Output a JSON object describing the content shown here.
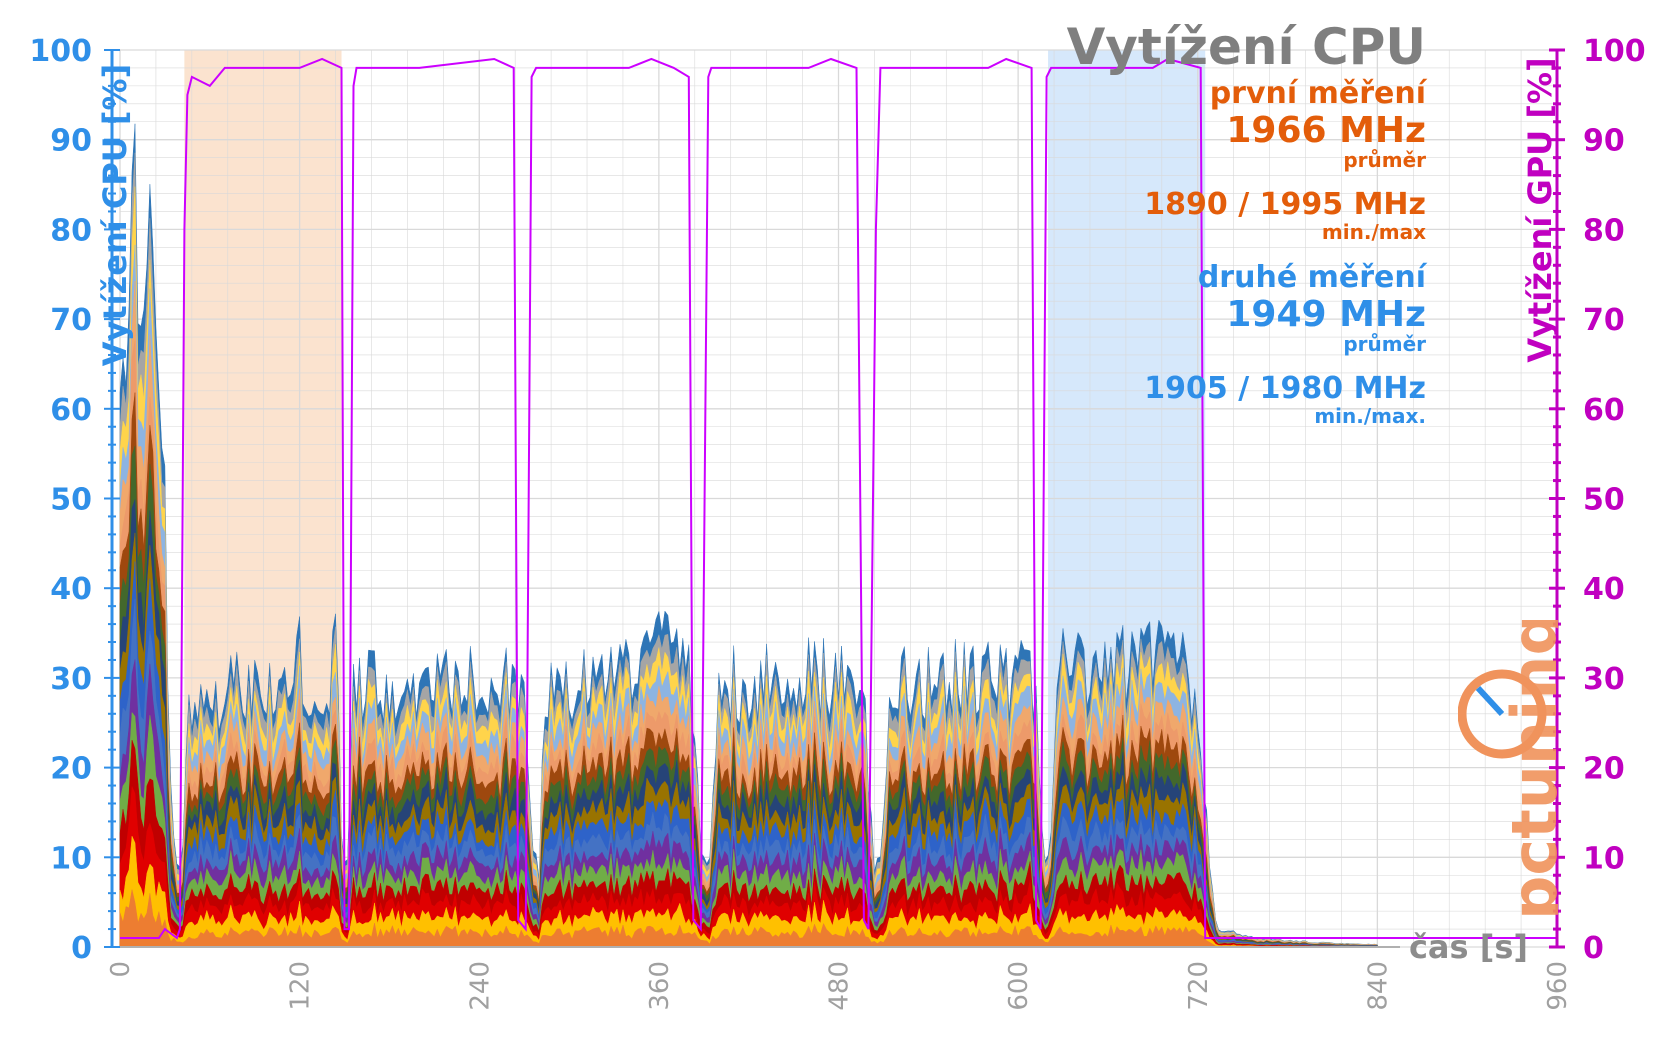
{
  "chart_data": {
    "type": "area",
    "title": "Vytížení CPU",
    "xlabel": "čas [s]",
    "ylabel_left": "Vytížení CPU [%]",
    "ylabel_right": "Vytížení GPU [%]",
    "xlim": [
      0,
      960
    ],
    "ylim": [
      0,
      100
    ],
    "x_ticks": [
      0,
      120,
      240,
      360,
      480,
      600,
      720,
      840,
      960
    ],
    "y_ticks": [
      0,
      10,
      20,
      30,
      40,
      50,
      60,
      70,
      80,
      90,
      100
    ],
    "grid": true,
    "highlight_ranges": [
      {
        "from": 43,
        "to": 148,
        "color": "#fbe3cf"
      },
      {
        "from": 620,
        "to": 725,
        "color": "#d6e8fb"
      }
    ],
    "cpu_stack_colors": [
      "#ed7d31",
      "#ffc000",
      "#e00000",
      "#c00000",
      "#70ad47",
      "#7030a0",
      "#4472c4",
      "#2e63c9",
      "#997300",
      "#264478",
      "#43682b",
      "#9e480e",
      "#ed9a6a",
      "#f0a86c",
      "#8db4e2",
      "#ffd44b",
      "#a5a5a5",
      "#2e75b6"
    ],
    "cpu_total_profile": [
      [
        0,
        62
      ],
      [
        4,
        70
      ],
      [
        10,
        80
      ],
      [
        18,
        78
      ],
      [
        25,
        72
      ],
      [
        30,
        50
      ],
      [
        33,
        25
      ],
      [
        36,
        12
      ],
      [
        40,
        8
      ],
      [
        43,
        12
      ],
      [
        45,
        27
      ],
      [
        60,
        28
      ],
      [
        80,
        29
      ],
      [
        100,
        28
      ],
      [
        118,
        33
      ],
      [
        125,
        30
      ],
      [
        140,
        29
      ],
      [
        145,
        42
      ],
      [
        148,
        12
      ],
      [
        152,
        9
      ],
      [
        155,
        29
      ],
      [
        200,
        30
      ],
      [
        260,
        30
      ],
      [
        270,
        28
      ],
      [
        276,
        10
      ],
      [
        280,
        9
      ],
      [
        284,
        29
      ],
      [
        320,
        30
      ],
      [
        350,
        33
      ],
      [
        355,
        40
      ],
      [
        365,
        34
      ],
      [
        380,
        30
      ],
      [
        389,
        10
      ],
      [
        394,
        9
      ],
      [
        400,
        29
      ],
      [
        440,
        30
      ],
      [
        480,
        30
      ],
      [
        497,
        30
      ],
      [
        503,
        10
      ],
      [
        508,
        9
      ],
      [
        514,
        29
      ],
      [
        560,
        30
      ],
      [
        600,
        30
      ],
      [
        612,
        29
      ],
      [
        617,
        10
      ],
      [
        621,
        9
      ],
      [
        627,
        31
      ],
      [
        680,
        32
      ],
      [
        705,
        33
      ],
      [
        715,
        30
      ],
      [
        722,
        25
      ],
      [
        728,
        8
      ],
      [
        733,
        2
      ],
      [
        760,
        1
      ],
      [
        800,
        0.5
      ],
      [
        840,
        0.3
      ]
    ],
    "gpu_profile": [
      [
        0,
        1
      ],
      [
        26,
        1
      ],
      [
        30,
        2
      ],
      [
        38,
        1
      ],
      [
        40,
        2
      ],
      [
        43,
        80
      ],
      [
        45,
        95
      ],
      [
        48,
        97
      ],
      [
        60,
        96
      ],
      [
        70,
        98
      ],
      [
        120,
        98
      ],
      [
        135,
        99
      ],
      [
        148,
        98
      ],
      [
        150,
        2
      ],
      [
        153,
        2
      ],
      [
        156,
        96
      ],
      [
        158,
        98
      ],
      [
        200,
        98
      ],
      [
        250,
        99
      ],
      [
        263,
        98
      ],
      [
        266,
        3
      ],
      [
        271,
        2
      ],
      [
        275,
        97
      ],
      [
        278,
        98
      ],
      [
        340,
        98
      ],
      [
        355,
        99
      ],
      [
        370,
        98
      ],
      [
        380,
        97
      ],
      [
        383,
        3
      ],
      [
        388,
        2
      ],
      [
        393,
        97
      ],
      [
        395,
        98
      ],
      [
        460,
        98
      ],
      [
        475,
        99
      ],
      [
        492,
        98
      ],
      [
        497,
        3
      ],
      [
        500,
        2
      ],
      [
        505,
        80
      ],
      [
        508,
        98
      ],
      [
        580,
        98
      ],
      [
        592,
        99
      ],
      [
        609,
        98
      ],
      [
        612,
        3
      ],
      [
        615,
        2
      ],
      [
        619,
        97
      ],
      [
        622,
        98
      ],
      [
        690,
        98
      ],
      [
        700,
        99
      ],
      [
        722,
        98
      ],
      [
        725,
        1
      ],
      [
        960,
        1
      ]
    ],
    "annotations": [
      {
        "label": "první měření",
        "value": "1966 MHz",
        "value_note": "průměr",
        "range": "1890 / 1995 MHz",
        "range_note": "min./max",
        "color": "#e35d0a"
      },
      {
        "label": "druhé měření",
        "value": "1949 MHz",
        "value_note": "průměr",
        "range": "1905 / 1980 MHz",
        "range_note": "min./max.",
        "color": "#2f8fe8"
      }
    ]
  },
  "colors": {
    "left_axis": "#2f8fe8",
    "right_axis": "#c000c0",
    "gpu_line": "#cc00ff",
    "grid": "#d9d9d9",
    "x_tick": "#a0a0a0"
  },
  "logo_text": "pctuning"
}
